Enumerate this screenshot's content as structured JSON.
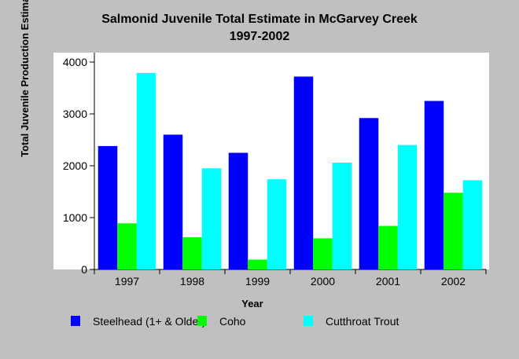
{
  "chart_data": {
    "type": "bar",
    "title": "Salmonid Juvenile Total Estimate in McGarvey Creek",
    "subtitle": "1997-2002",
    "xlabel": "Year",
    "ylabel": "Total Juvenile Production Estimate",
    "ylim": [
      0,
      4000
    ],
    "yticks": [
      "0",
      "1000",
      "2000",
      "3000",
      "4000"
    ],
    "categories": [
      "1997",
      "1998",
      "1999",
      "2000",
      "2001",
      "2002"
    ],
    "series": [
      {
        "name": "Steelhead (1+ & Older)",
        "color": "#0000ff",
        "values": [
          2380,
          2600,
          2250,
          3720,
          2920,
          3250
        ]
      },
      {
        "name": "Coho",
        "color": "#00ff00",
        "values": [
          890,
          620,
          190,
          600,
          840,
          1480
        ]
      },
      {
        "name": "Cutthroat Trout",
        "color": "#00ffff",
        "values": [
          3790,
          1950,
          1740,
          2060,
          2400,
          1720
        ]
      }
    ],
    "grid": false,
    "legend_position": "bottom"
  }
}
